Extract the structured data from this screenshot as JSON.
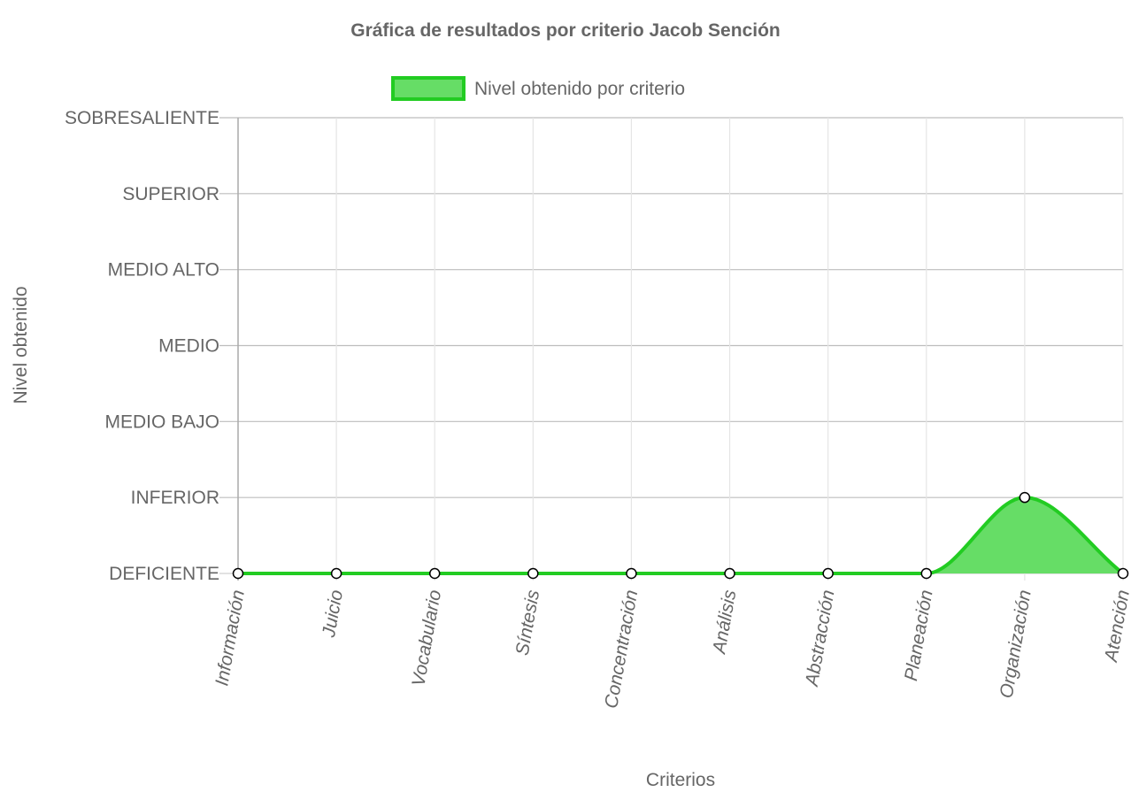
{
  "chart_data": {
    "type": "area",
    "title": "Gráfica de resultados por criterio Jacob Sención",
    "xlabel": "Criterios",
    "ylabel": "Nivel obtenido",
    "categories": [
      "Información",
      "Juicio",
      "Vocabulario",
      "Síntesis",
      "Concentración",
      "Análisis",
      "Abstracción",
      "Planeación",
      "Organización",
      "Atención"
    ],
    "y_levels": [
      "DEFICIENTE",
      "INFERIOR",
      "MEDIO BAJO",
      "MEDIO",
      "MEDIO ALTO",
      "SUPERIOR",
      "SOBRESALIENTE"
    ],
    "series": [
      {
        "name": "Nivel obtenido por criterio",
        "values": [
          0,
          0,
          0,
          0,
          0,
          0,
          0,
          0,
          1,
          0
        ]
      }
    ],
    "ylim": [
      0,
      6
    ],
    "grid": true,
    "legend_position": "top",
    "colors": {
      "line": "#22cc22",
      "fill": "#66dd66",
      "grid": "#e5e5e5",
      "axis": "#aaaaaa",
      "point_fill": "#ffffff",
      "point_stroke": "#000000"
    }
  }
}
